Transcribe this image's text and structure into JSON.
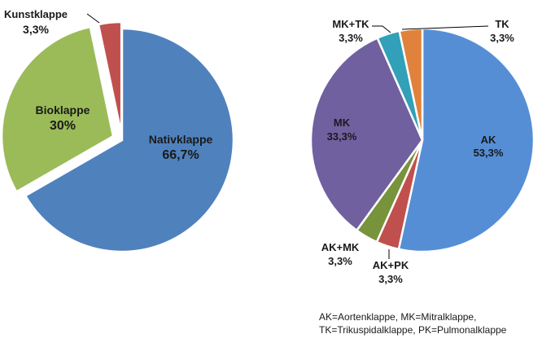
{
  "chart_data": [
    {
      "type": "pie",
      "slices": [
        {
          "name": "Nativklappe",
          "value": 66.7,
          "label": "66,7%",
          "color": "#4f81bd"
        },
        {
          "name": "Bioklappe",
          "value": 30,
          "label": "30%",
          "color": "#9bbb59"
        },
        {
          "name": "Kunstklappe",
          "value": 3.3,
          "label": "3,3%",
          "color": "#c0504d"
        }
      ]
    },
    {
      "type": "pie",
      "slices": [
        {
          "name": "AK",
          "value": 53.3,
          "label": "53,3%",
          "color": "#558ed5"
        },
        {
          "name": "AK+PK",
          "value": 3.3,
          "label": "3,3%",
          "color": "#c0504d"
        },
        {
          "name": "AK+MK",
          "value": 3.3,
          "label": "3,3%",
          "color": "#77933c"
        },
        {
          "name": "MK",
          "value": 33.3,
          "label": "33,3%",
          "color": "#7060a0"
        },
        {
          "name": "MK+TK",
          "value": 3.3,
          "label": "3,3%",
          "color": "#31a0b8"
        },
        {
          "name": "TK",
          "value": 3.3,
          "label": "3,3%",
          "color": "#e0823c"
        }
      ]
    }
  ],
  "footnote": {
    "line1": "AK=Aortenklappe, MK=Mitralklappe,",
    "line2": "TK=Trikuspidalklappe, PK=Pulmonalklappe"
  }
}
